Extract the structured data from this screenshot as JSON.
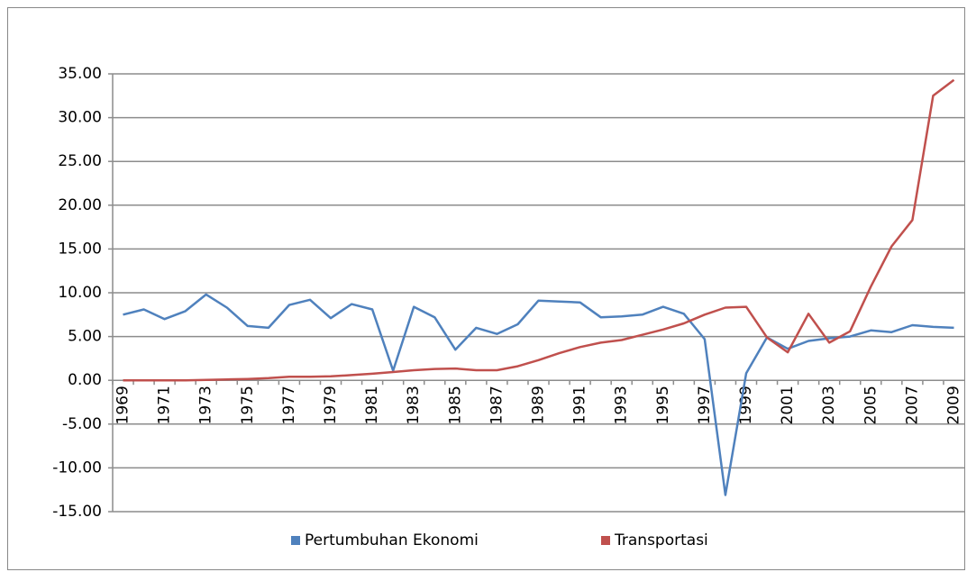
{
  "chart_data": {
    "type": "line",
    "categories": [
      "1969",
      null,
      "1971",
      null,
      "1973",
      null,
      "1975",
      null,
      "1977",
      null,
      "1979",
      null,
      "1981",
      null,
      "1983",
      null,
      "1985",
      null,
      "1987",
      null,
      "1989",
      null,
      "1991",
      null,
      "1993",
      null,
      "1995",
      null,
      "1997",
      null,
      "1999",
      null,
      "2001",
      null,
      "2003",
      null,
      "2005",
      null,
      "2007",
      null,
      "2009"
    ],
    "series": [
      {
        "name": "Pertumbuhan Ekonomi",
        "color": "#4f81bd",
        "values": [
          7.5,
          8.1,
          7.0,
          7.9,
          9.8,
          8.3,
          6.2,
          6.0,
          8.6,
          9.2,
          7.1,
          8.7,
          8.1,
          1.1,
          8.4,
          7.2,
          3.5,
          6.0,
          5.3,
          6.4,
          9.1,
          9.0,
          8.9,
          7.2,
          7.3,
          7.5,
          8.4,
          7.6,
          4.7,
          -13.1,
          0.8,
          4.9,
          3.6,
          4.5,
          4.8,
          5.0,
          5.7,
          5.5,
          6.3,
          6.1,
          6.0
        ]
      },
      {
        "name": "Transportasi",
        "color": "#c0504d",
        "values": [
          0.0,
          0.0,
          0.0,
          0.0,
          0.05,
          0.1,
          0.15,
          0.25,
          0.4,
          0.4,
          0.45,
          0.6,
          0.75,
          0.95,
          1.15,
          1.3,
          1.35,
          1.15,
          1.15,
          1.6,
          2.3,
          3.1,
          3.8,
          4.3,
          4.6,
          5.2,
          5.8,
          6.5,
          7.5,
          8.3,
          8.4,
          4.9,
          3.2,
          7.6,
          4.3,
          5.6,
          10.7,
          15.3,
          18.3,
          32.5,
          34.3
        ]
      }
    ],
    "ylim": [
      -15,
      35
    ],
    "yticks": [
      {
        "value": -15,
        "label": "-15.00"
      },
      {
        "value": -10,
        "label": "-10.00"
      },
      {
        "value": -5,
        "label": "-5.00"
      },
      {
        "value": 0,
        "label": "0.00"
      },
      {
        "value": 5,
        "label": "5.00"
      },
      {
        "value": 10,
        "label": "10.00"
      },
      {
        "value": 15,
        "label": "15.00"
      },
      {
        "value": 20,
        "label": "20.00"
      },
      {
        "value": 25,
        "label": "25.00"
      },
      {
        "value": 30,
        "label": "30.00"
      },
      {
        "value": 35,
        "label": "35.00"
      }
    ],
    "grid": true,
    "legend": "bottom"
  }
}
